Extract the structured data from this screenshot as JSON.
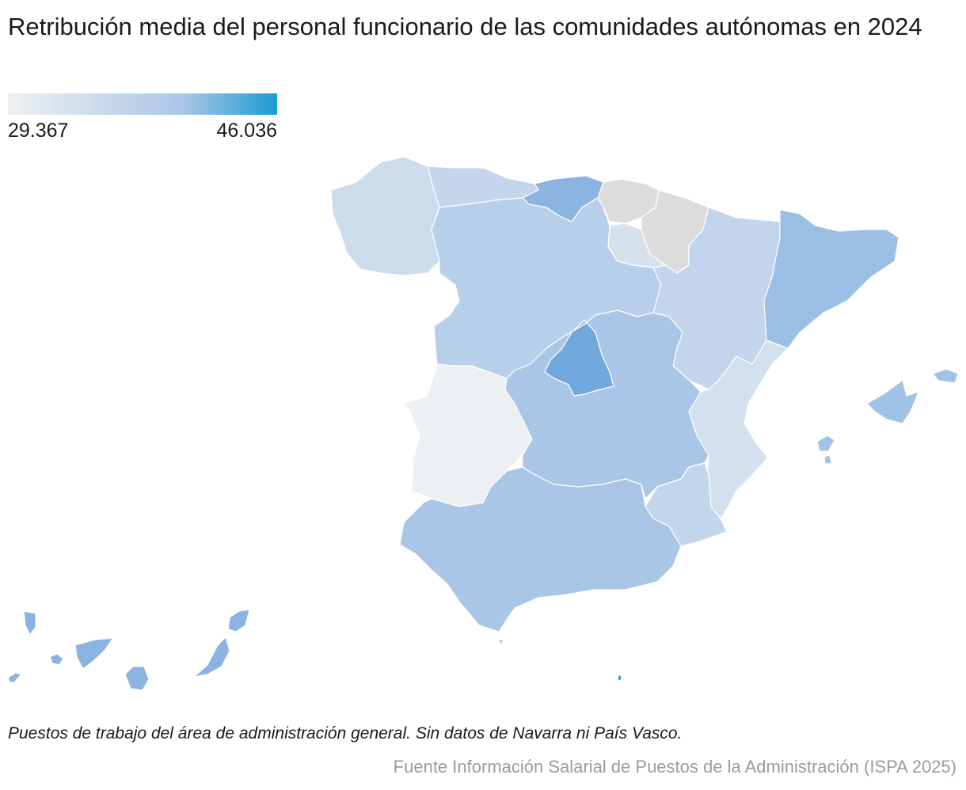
{
  "title": "Retribución media del personal funcionario de las comunidades autónomas en 2024",
  "legend": {
    "min_label": "29.367",
    "max_label": "46.036",
    "min_value": 29367,
    "max_value": 46036,
    "color_min": "#eef0f2",
    "color_mid": "#aac6e6",
    "color_max": "#1b9bd3",
    "no_data_color": "#dcdcdc"
  },
  "regions": [
    {
      "name": "Galicia",
      "shade": "light-blue",
      "color": "#ccdcec"
    },
    {
      "name": "Asturias",
      "shade": "light-blue",
      "color": "#c3d6ec"
    },
    {
      "name": "Cantabria",
      "shade": "medium-blue",
      "color": "#8cb4e0"
    },
    {
      "name": "País Vasco",
      "shade": "no-data",
      "color": "#dcdcdc"
    },
    {
      "name": "Navarra",
      "shade": "no-data",
      "color": "#dcdcdc"
    },
    {
      "name": "La Rioja",
      "shade": "very-light-blue",
      "color": "#d6e1ee"
    },
    {
      "name": "Castilla y León",
      "shade": "light-blue",
      "color": "#b7cfe9"
    },
    {
      "name": "Aragón",
      "shade": "light-blue",
      "color": "#c3d5ec"
    },
    {
      "name": "Cataluña",
      "shade": "medium-blue",
      "color": "#9abee4"
    },
    {
      "name": "Comunidad de Madrid",
      "shade": "dark-blue",
      "color": "#70a8de"
    },
    {
      "name": "Extremadura",
      "shade": "lightest",
      "color": "#ecf0f2"
    },
    {
      "name": "Castilla-La Mancha",
      "shade": "medium-blue",
      "color": "#a9c6e6"
    },
    {
      "name": "Comunitat Valenciana",
      "shade": "very-light-blue",
      "color": "#d3e0ee"
    },
    {
      "name": "Región de Murcia",
      "shade": "light-blue",
      "color": "#c1d5ec"
    },
    {
      "name": "Andalucía",
      "shade": "medium-blue",
      "color": "#a9c6e6"
    },
    {
      "name": "Illes Balears",
      "shade": "medium-blue",
      "color": "#a0c2e6"
    },
    {
      "name": "Canarias",
      "shade": "medium-blue",
      "color": "#8ab3e2"
    },
    {
      "name": "Ceuta",
      "shade": "medium-blue",
      "color": "#a9c6e6"
    },
    {
      "name": "Melilla",
      "shade": "darkest",
      "color": "#1b9bd3"
    }
  ],
  "note": "Puestos de trabajo del área de administración general. Sin datos de Navarra ni País Vasco.",
  "source": "Fuente Información Salarial de Puestos de la Administración (ISPA 2025)"
}
